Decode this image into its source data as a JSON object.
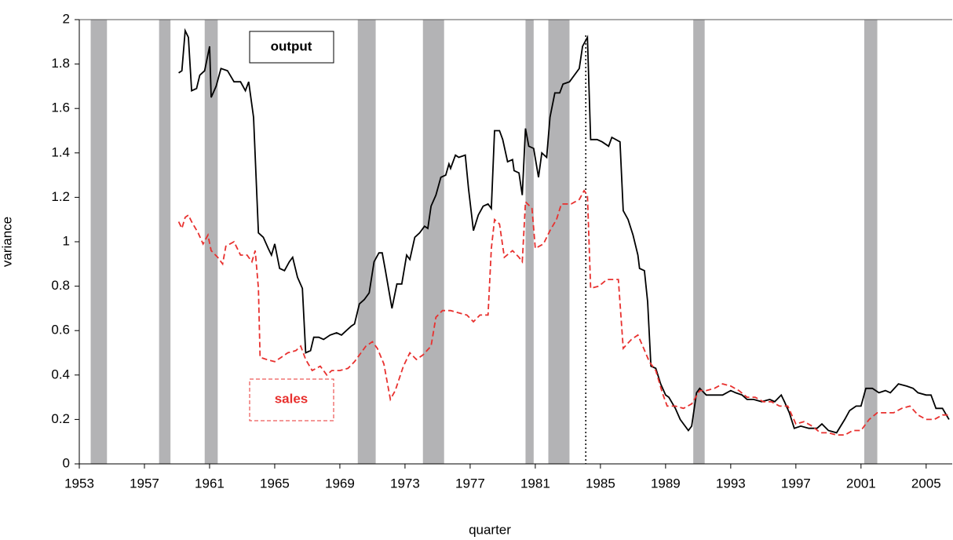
{
  "chart_data": {
    "type": "line",
    "xlabel": "quarter",
    "ylabel": "variance",
    "xlim": [
      1953,
      2006.6
    ],
    "ylim": [
      0,
      2
    ],
    "xticks": [
      1953,
      1957,
      1961,
      1965,
      1969,
      1973,
      1977,
      1981,
      1985,
      1989,
      1993,
      1997,
      2001,
      2005
    ],
    "yticks": [
      0,
      0.2,
      0.4,
      0.6,
      0.8,
      1,
      1.2,
      1.4,
      1.6,
      1.8,
      2
    ],
    "grid": false,
    "shaded_periods": [
      [
        1953.7,
        1954.7
      ],
      [
        1957.9,
        1958.6
      ],
      [
        1960.7,
        1961.5
      ],
      [
        1970.1,
        1971.2
      ],
      [
        1974.1,
        1975.4
      ],
      [
        1980.4,
        1980.9
      ],
      [
        1981.8,
        1983.1
      ],
      [
        1990.7,
        1991.4
      ],
      [
        2001.2,
        2002.0
      ]
    ],
    "shade_color": "#b3b3b5",
    "reference_line_x": 1984.1,
    "series": [
      {
        "name": "output",
        "color": "#000000",
        "dash": false,
        "x": [
          1959.1,
          1959.3,
          1959.5,
          1959.7,
          1959.9,
          1960.2,
          1960.4,
          1960.7,
          1961.0,
          1961.1,
          1961.4,
          1961.7,
          1962.1,
          1962.5,
          1962.9,
          1963.2,
          1963.4,
          1963.7,
          1964.0,
          1964.3,
          1964.6,
          1964.8,
          1965.0,
          1965.3,
          1965.6,
          1965.9,
          1966.1,
          1966.4,
          1966.7,
          1966.9,
          1967.2,
          1967.4,
          1967.7,
          1968.0,
          1968.4,
          1968.8,
          1969.1,
          1969.4,
          1969.7,
          1969.9,
          1970.2,
          1970.5,
          1970.8,
          1971.1,
          1971.4,
          1971.6,
          1971.8,
          1972.2,
          1972.5,
          1972.8,
          1973.1,
          1973.3,
          1973.6,
          1973.9,
          1974.2,
          1974.4,
          1974.6,
          1974.9,
          1975.2,
          1975.5,
          1975.7,
          1975.8,
          1976.1,
          1976.3,
          1976.7,
          1976.9,
          1977.2,
          1977.5,
          1977.8,
          1978.1,
          1978.3,
          1978.5,
          1978.8,
          1979.0,
          1979.3,
          1979.6,
          1979.7,
          1980.0,
          1980.2,
          1980.4,
          1980.6,
          1980.9,
          1981.2,
          1981.4,
          1981.7,
          1981.9,
          1982.2,
          1982.5,
          1982.7,
          1983.1,
          1983.5,
          1983.7,
          1983.9,
          1984.2,
          1984.4,
          1984.8,
          1985.1,
          1985.5,
          1985.7,
          1986.2,
          1986.4,
          1986.7,
          1987.0,
          1987.3,
          1987.4,
          1987.7,
          1987.9,
          1988.1,
          1988.4,
          1988.7,
          1989.0,
          1989.2,
          1989.6,
          1989.9,
          1990.1,
          1990.4,
          1990.6,
          1990.9,
          1991.1,
          1991.5,
          1992.0,
          1992.5,
          1993.0,
          1993.3,
          1993.7,
          1994.0,
          1994.4,
          1994.9,
          1995.4,
          1995.7,
          1996.1,
          1996.3,
          1996.6,
          1996.9,
          1997.3,
          1997.8,
          1998.3,
          1998.6,
          1999.0,
          1999.5,
          2000.0,
          2000.3,
          2000.7,
          2001.0,
          2001.3,
          2001.7,
          2002.1,
          2002.5,
          2002.8,
          2003.3,
          2003.8,
          2004.2,
          2004.5,
          2005.0,
          2005.3,
          2005.6,
          2006.0,
          2006.4
        ],
        "values": [
          1.76,
          1.77,
          1.95,
          1.92,
          1.68,
          1.69,
          1.75,
          1.77,
          1.88,
          1.65,
          1.7,
          1.78,
          1.77,
          1.72,
          1.72,
          1.68,
          1.72,
          1.56,
          1.04,
          1.02,
          0.97,
          0.94,
          0.99,
          0.88,
          0.87,
          0.91,
          0.93,
          0.84,
          0.79,
          0.5,
          0.51,
          0.57,
          0.57,
          0.56,
          0.58,
          0.59,
          0.58,
          0.6,
          0.62,
          0.63,
          0.72,
          0.74,
          0.77,
          0.91,
          0.95,
          0.95,
          0.87,
          0.7,
          0.81,
          0.81,
          0.94,
          0.92,
          1.02,
          1.04,
          1.07,
          1.06,
          1.16,
          1.21,
          1.29,
          1.3,
          1.35,
          1.33,
          1.39,
          1.38,
          1.39,
          1.24,
          1.05,
          1.12,
          1.16,
          1.17,
          1.15,
          1.5,
          1.5,
          1.46,
          1.36,
          1.37,
          1.32,
          1.31,
          1.21,
          1.51,
          1.43,
          1.42,
          1.29,
          1.4,
          1.38,
          1.56,
          1.67,
          1.67,
          1.71,
          1.72,
          1.76,
          1.78,
          1.88,
          1.92,
          1.46,
          1.46,
          1.45,
          1.43,
          1.47,
          1.45,
          1.14,
          1.1,
          1.03,
          0.94,
          0.88,
          0.87,
          0.73,
          0.44,
          0.43,
          0.36,
          0.31,
          0.3,
          0.25,
          0.2,
          0.18,
          0.15,
          0.17,
          0.32,
          0.34,
          0.31,
          0.31,
          0.31,
          0.33,
          0.32,
          0.31,
          0.29,
          0.29,
          0.28,
          0.29,
          0.28,
          0.31,
          0.28,
          0.23,
          0.16,
          0.17,
          0.16,
          0.16,
          0.18,
          0.15,
          0.14,
          0.2,
          0.24,
          0.26,
          0.26,
          0.34,
          0.34,
          0.32,
          0.33,
          0.32,
          0.36,
          0.35,
          0.34,
          0.32,
          0.31,
          0.31,
          0.25,
          0.25,
          0.2
        ]
      },
      {
        "name": "sales",
        "color": "#e8312f",
        "dash": true,
        "x": [
          1959.1,
          1959.3,
          1959.5,
          1959.7,
          1959.9,
          1960.3,
          1960.6,
          1960.9,
          1961.1,
          1961.5,
          1961.8,
          1962.0,
          1962.5,
          1962.9,
          1963.3,
          1963.6,
          1963.8,
          1964.0,
          1964.1,
          1964.5,
          1965.0,
          1965.4,
          1965.8,
          1966.3,
          1966.6,
          1966.9,
          1967.3,
          1967.8,
          1968.2,
          1968.5,
          1969.0,
          1969.5,
          1969.9,
          1970.3,
          1970.6,
          1971.0,
          1971.3,
          1971.7,
          1972.1,
          1972.4,
          1972.9,
          1973.3,
          1973.7,
          1974.1,
          1974.6,
          1974.9,
          1975.3,
          1975.8,
          1976.3,
          1976.8,
          1977.2,
          1977.6,
          1978.1,
          1978.3,
          1978.5,
          1978.8,
          1979.1,
          1979.6,
          1980.0,
          1980.2,
          1980.4,
          1980.8,
          1981.0,
          1981.5,
          1981.9,
          1982.3,
          1982.6,
          1983.2,
          1983.7,
          1984.0,
          1984.2,
          1984.4,
          1984.9,
          1985.4,
          1986.1,
          1986.4,
          1986.9,
          1987.3,
          1987.6,
          1988.0,
          1988.4,
          1988.8,
          1989.1,
          1989.6,
          1990.1,
          1990.6,
          1991.1,
          1991.5,
          1992.0,
          1992.5,
          1993.0,
          1993.5,
          1994.0,
          1994.5,
          1995.0,
          1995.5,
          1996.0,
          1996.5,
          1997.0,
          1997.5,
          1998.0,
          1998.5,
          1999.0,
          1999.5,
          2000.0,
          2000.5,
          2001.0,
          2001.5,
          2002.0,
          2002.5,
          2003.0,
          2003.5,
          2004.0,
          2004.5,
          2005.0,
          2005.5,
          2006.0,
          2006.5
        ],
        "values": [
          1.09,
          1.06,
          1.11,
          1.12,
          1.09,
          1.04,
          0.99,
          1.03,
          0.96,
          0.93,
          0.9,
          0.98,
          1.0,
          0.94,
          0.94,
          0.91,
          0.96,
          0.79,
          0.48,
          0.47,
          0.46,
          0.48,
          0.5,
          0.51,
          0.53,
          0.47,
          0.42,
          0.44,
          0.4,
          0.42,
          0.42,
          0.43,
          0.46,
          0.5,
          0.53,
          0.55,
          0.52,
          0.45,
          0.29,
          0.33,
          0.44,
          0.5,
          0.47,
          0.49,
          0.53,
          0.66,
          0.69,
          0.69,
          0.68,
          0.67,
          0.64,
          0.67,
          0.67,
          0.97,
          1.1,
          1.08,
          0.93,
          0.96,
          0.93,
          0.91,
          1.18,
          1.15,
          0.97,
          0.99,
          1.05,
          1.1,
          1.17,
          1.17,
          1.19,
          1.23,
          1.21,
          0.79,
          0.8,
          0.83,
          0.83,
          0.52,
          0.56,
          0.58,
          0.53,
          0.46,
          0.42,
          0.32,
          0.26,
          0.26,
          0.25,
          0.27,
          0.33,
          0.33,
          0.34,
          0.36,
          0.35,
          0.33,
          0.3,
          0.3,
          0.28,
          0.28,
          0.26,
          0.26,
          0.18,
          0.19,
          0.17,
          0.14,
          0.14,
          0.13,
          0.13,
          0.15,
          0.15,
          0.2,
          0.23,
          0.23,
          0.23,
          0.25,
          0.26,
          0.22,
          0.2,
          0.2,
          0.22,
          0.22
        ]
      }
    ]
  }
}
